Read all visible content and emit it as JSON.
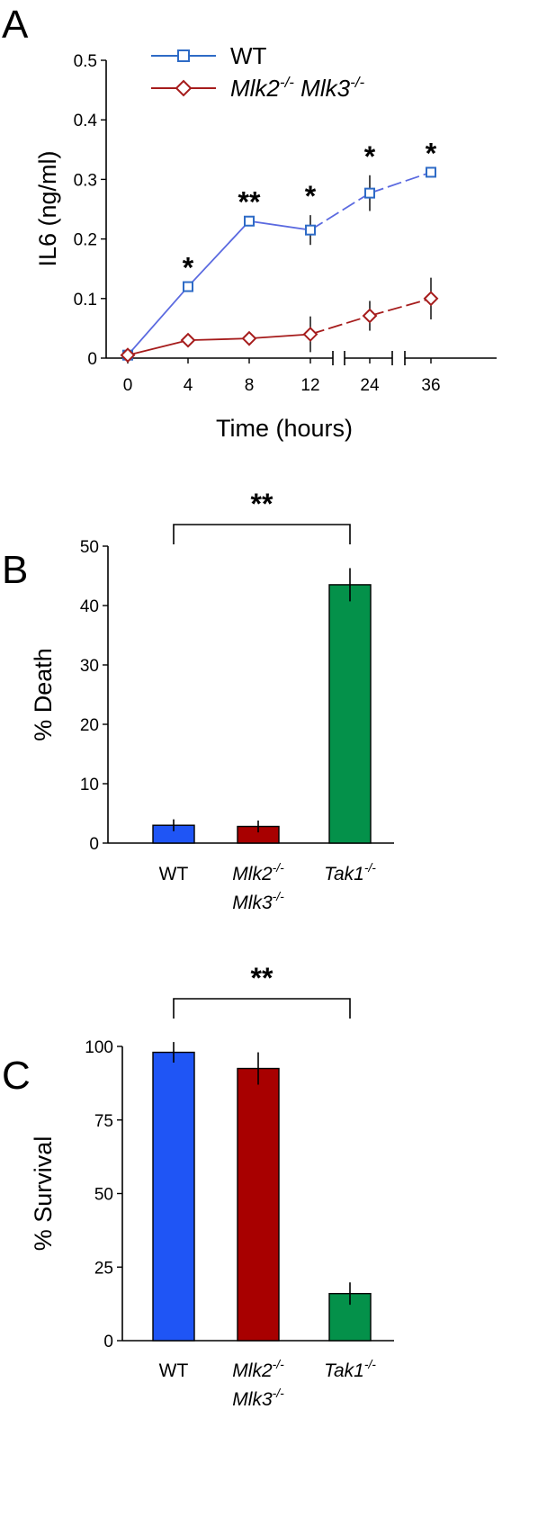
{
  "chart_data": [
    {
      "panel": "A",
      "type": "line",
      "xlabel": "Time  (hours)",
      "ylabel": "IL6  (ng/ml)",
      "x": [
        0,
        4,
        8,
        12,
        24,
        36
      ],
      "x_tick_labels": [
        "0",
        "4",
        "8",
        "12",
        "24",
        "36"
      ],
      "x_axis_breaks": true,
      "ylim": [
        0,
        0.5
      ],
      "y_ticks": [
        0,
        0.1,
        0.2,
        0.3,
        0.4,
        0.5
      ],
      "y_tick_labels": [
        "0",
        "0.1",
        "0.2",
        "0.3",
        "0.4",
        "0.5"
      ],
      "legend_placement": "top",
      "series": [
        {
          "name": "WT",
          "color": "#2E6BC6",
          "marker": "square",
          "values": [
            0.005,
            0.12,
            0.23,
            0.215,
            0.277,
            0.312
          ],
          "errors": [
            0,
            0,
            0,
            0.025,
            0.03,
            0
          ],
          "significance": [
            "",
            "*",
            "**",
            "*",
            "*",
            "*"
          ]
        },
        {
          "name": "Mlk2",
          "name_sup": "-/-",
          "name_part2": "Mlk3",
          "name_part2_sup": "-/-",
          "color": "#A61C1C",
          "marker": "diamond",
          "values": [
            0.005,
            0.03,
            0.033,
            0.04,
            0.071,
            0.1
          ],
          "errors": [
            0,
            0,
            0,
            0.03,
            0.025,
            0.035
          ]
        }
      ]
    },
    {
      "panel": "B",
      "type": "bar",
      "ylabel": "%  Death",
      "ylim": [
        0,
        50
      ],
      "y_ticks": [
        0,
        10,
        20,
        30,
        40,
        50
      ],
      "y_tick_labels": [
        "0",
        "10",
        "20",
        "30",
        "40",
        "50"
      ],
      "categories": [
        {
          "line1": "WT",
          "sup1": "",
          "line2": "",
          "sup2": "",
          "italic": false
        },
        {
          "line1": "Mlk2",
          "sup1": "-/-",
          "line2": "Mlk3",
          "sup2": "-/-",
          "italic": true
        },
        {
          "line1": "Tak1",
          "sup1": "-/-",
          "line2": "",
          "sup2": "",
          "italic": true
        }
      ],
      "values": [
        3.0,
        2.8,
        43.5
      ],
      "errors": [
        1.0,
        1.0,
        2.8
      ],
      "colors": [
        "#1F55F5",
        "#A80000",
        "#04914A"
      ],
      "significance_label": "**"
    },
    {
      "panel": "C",
      "type": "bar",
      "ylabel": "%  Survival",
      "ylim": [
        0,
        100
      ],
      "y_ticks": [
        0,
        25,
        50,
        75,
        100
      ],
      "y_tick_labels": [
        "0",
        "25",
        "50",
        "75",
        "100"
      ],
      "categories": [
        {
          "line1": "WT",
          "sup1": "",
          "line2": "",
          "sup2": "",
          "italic": false
        },
        {
          "line1": "Mlk2",
          "sup1": "-/-",
          "line2": "Mlk3",
          "sup2": "-/-",
          "italic": true
        },
        {
          "line1": "Tak1",
          "sup1": "-/-",
          "line2": "",
          "sup2": "",
          "italic": true
        }
      ],
      "values": [
        98,
        92.5,
        16
      ],
      "errors": [
        3.5,
        5.5,
        3.8
      ],
      "colors": [
        "#1F55F5",
        "#A80000",
        "#04914A"
      ],
      "significance_label": "**"
    }
  ]
}
